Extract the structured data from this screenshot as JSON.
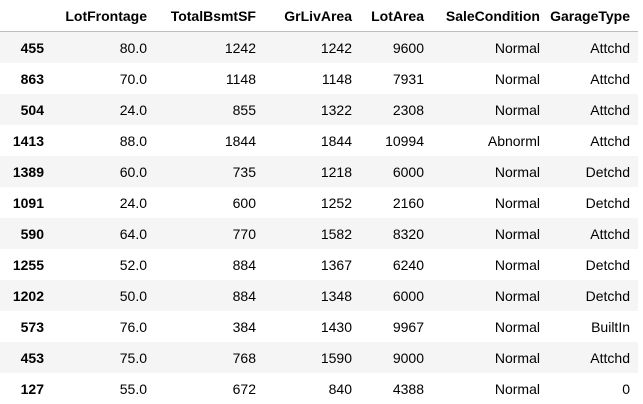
{
  "columns": [
    "",
    "LotFrontage",
    "TotalBsmtSF",
    "GrLivArea",
    "LotArea",
    "SaleCondition",
    "GarageType"
  ],
  "rows": [
    {
      "index": "455",
      "cells": [
        "80.0",
        "1242",
        "1242",
        "9600",
        "Normal",
        "Attchd"
      ]
    },
    {
      "index": "863",
      "cells": [
        "70.0",
        "1148",
        "1148",
        "7931",
        "Normal",
        "Attchd"
      ]
    },
    {
      "index": "504",
      "cells": [
        "24.0",
        "855",
        "1322",
        "2308",
        "Normal",
        "Attchd"
      ]
    },
    {
      "index": "1413",
      "cells": [
        "88.0",
        "1844",
        "1844",
        "10994",
        "Abnorml",
        "Attchd"
      ]
    },
    {
      "index": "1389",
      "cells": [
        "60.0",
        "735",
        "1218",
        "6000",
        "Normal",
        "Detchd"
      ]
    },
    {
      "index": "1091",
      "cells": [
        "24.0",
        "600",
        "1252",
        "2160",
        "Normal",
        "Detchd"
      ]
    },
    {
      "index": "590",
      "cells": [
        "64.0",
        "770",
        "1582",
        "8320",
        "Normal",
        "Attchd"
      ]
    },
    {
      "index": "1255",
      "cells": [
        "52.0",
        "884",
        "1367",
        "6240",
        "Normal",
        "Detchd"
      ]
    },
    {
      "index": "1202",
      "cells": [
        "50.0",
        "884",
        "1348",
        "6000",
        "Normal",
        "Detchd"
      ]
    },
    {
      "index": "573",
      "cells": [
        "76.0",
        "384",
        "1430",
        "9967",
        "Normal",
        "BuiltIn"
      ]
    },
    {
      "index": "453",
      "cells": [
        "75.0",
        "768",
        "1590",
        "9000",
        "Normal",
        "Attchd"
      ]
    },
    {
      "index": "127",
      "cells": [
        "55.0",
        "672",
        "840",
        "4388",
        "Normal",
        "0"
      ]
    }
  ]
}
